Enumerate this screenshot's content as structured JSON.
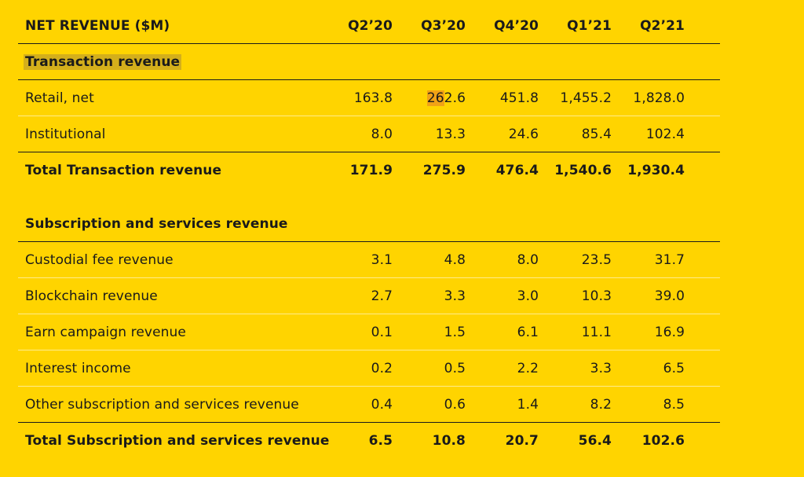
{
  "header": {
    "title": "NET REVENUE ($M)",
    "columns": [
      "Q2’20",
      "Q3’20",
      "Q4’20",
      "Q1’21",
      "Q2’21"
    ]
  },
  "transaction": {
    "section_title": "Transaction revenue",
    "rows": [
      {
        "label": "Retail, net",
        "values": [
          "163.8",
          "262.6",
          "451.8",
          "1,455.2",
          "1,828.0"
        ]
      },
      {
        "label": "Institutional",
        "values": [
          "8.0",
          "13.3",
          "24.6",
          "85.4",
          "102.4"
        ]
      }
    ],
    "total": {
      "label": "Total Transaction revenue",
      "values": [
        "171.9",
        "275.9",
        "476.4",
        "1,540.6",
        "1,930.4"
      ]
    }
  },
  "subscription": {
    "section_title": "Subscription and services revenue",
    "rows": [
      {
        "label": "Custodial fee revenue",
        "values": [
          "3.1",
          "4.8",
          "8.0",
          "23.5",
          "31.7"
        ]
      },
      {
        "label": "Blockchain revenue",
        "values": [
          "2.7",
          "3.3",
          "3.0",
          "10.3",
          "39.0"
        ]
      },
      {
        "label": "Earn campaign revenue",
        "values": [
          "0.1",
          "1.5",
          "6.1",
          "11.1",
          "16.9"
        ]
      },
      {
        "label": "Interest income",
        "values": [
          "0.2",
          "0.5",
          "2.2",
          "3.3",
          "6.5"
        ]
      },
      {
        "label": "Other subscription and services revenue",
        "values": [
          "0.4",
          "0.6",
          "1.4",
          "8.2",
          "8.5"
        ]
      }
    ],
    "total": {
      "label": "Total Subscription and services revenue",
      "values": [
        "6.5",
        "10.8",
        "20.7",
        "56.4",
        "102.6"
      ]
    }
  }
}
